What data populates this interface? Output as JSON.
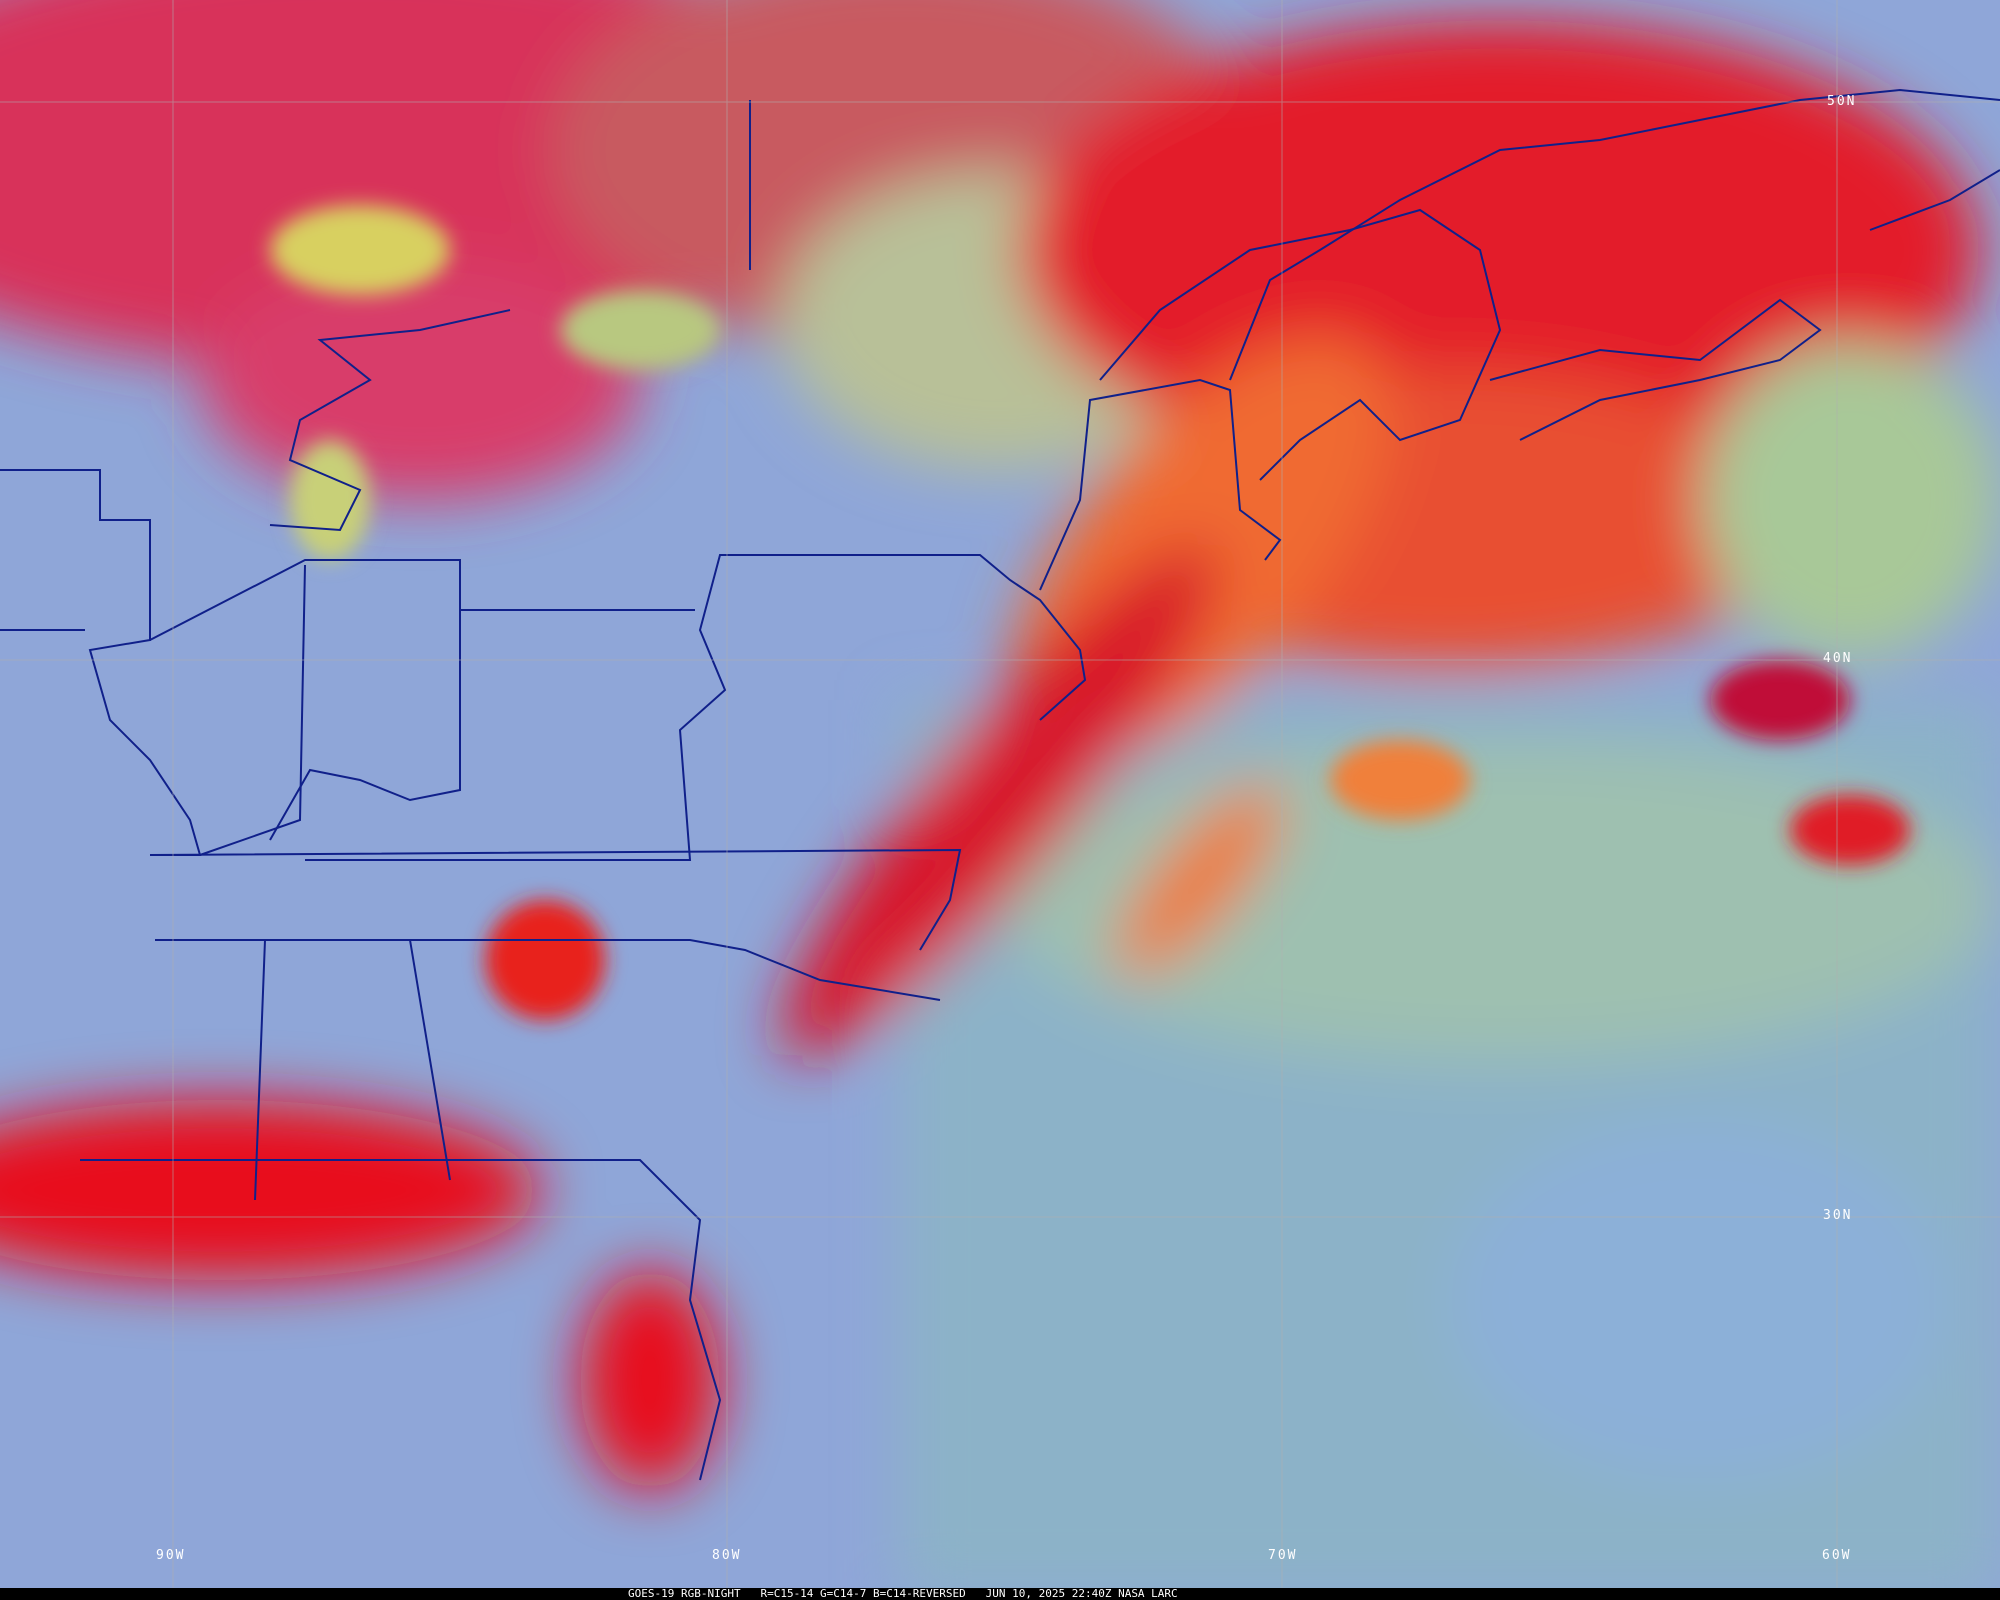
{
  "caption": "GOES-19 RGB-NIGHT   R=C15-14 G=C14-7 B=C14-REVERSED   JUN 10, 2025 22:40Z NASA LARC",
  "latitude_labels": [
    "50N",
    "40N",
    "30N"
  ],
  "longitude_labels": [
    "90W",
    "80W",
    "70W",
    "60W"
  ],
  "colors": {
    "clear_land": "#93a8e0",
    "ocean": "#8db0c8",
    "cloud_red": "#e3122a",
    "cloud_orange": "#f07830",
    "lake": "#d8d060",
    "boundaries": "#10208a",
    "grid": "#b0b0b0"
  }
}
